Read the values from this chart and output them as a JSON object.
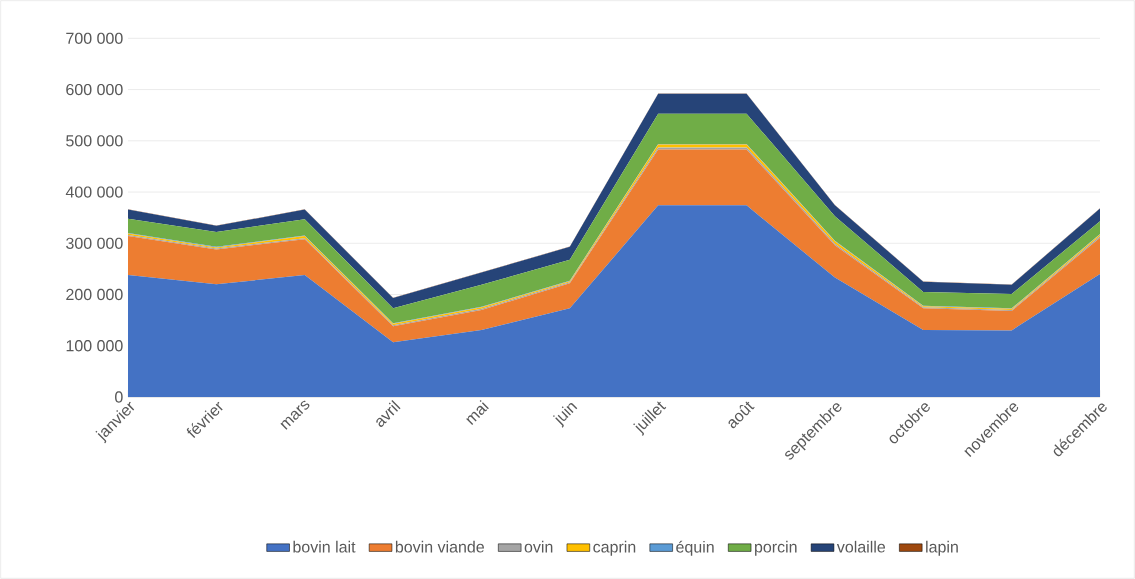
{
  "chart_data": {
    "type": "area",
    "stacked": true,
    "grid": "y",
    "legend": "bottom",
    "categories": [
      "janvier",
      "février",
      "mars",
      "avril",
      "mai",
      "juin",
      "juillet",
      "août",
      "septembre",
      "octobre",
      "novembre",
      "décembre"
    ],
    "ylim": [
      0,
      700000
    ],
    "yticks": [
      0,
      {
        "value": 100000,
        "label": "100 000"
      },
      {
        "value": 200000,
        "label": "200 000"
      },
      {
        "value": 300000,
        "label": "300 000"
      },
      {
        "value": 400000,
        "label": "400 000"
      },
      {
        "value": 500000,
        "label": "500 000"
      },
      {
        "value": 600000,
        "label": "600 000"
      },
      {
        "value": 700000,
        "label": "700 000"
      }
    ],
    "series": [
      {
        "name": "bovin lait",
        "color": "#4472c4",
        "values": [
          238000,
          220000,
          238000,
          107000,
          131000,
          173000,
          374000,
          374000,
          233000,
          131000,
          130000,
          240000
        ]
      },
      {
        "name": "bovin viande",
        "color": "#ed7d31",
        "values": [
          76000,
          68000,
          70000,
          31000,
          39000,
          49000,
          109000,
          109000,
          63000,
          42000,
          38000,
          71000
        ]
      },
      {
        "name": "ovin",
        "color": "#a5a5a5",
        "values": [
          2000,
          2000,
          2000,
          2000,
          2000,
          2000,
          4000,
          4000,
          3000,
          2000,
          2000,
          3000
        ]
      },
      {
        "name": "caprin",
        "color": "#ffc000",
        "values": [
          3000,
          2000,
          4000,
          3000,
          3000,
          2000,
          6000,
          6000,
          5000,
          2000,
          2000,
          3000
        ]
      },
      {
        "name": "équin",
        "color": "#5b9bd5",
        "values": [
          1000,
          1000,
          1000,
          1000,
          1000,
          1000,
          1000,
          1000,
          1000,
          1000,
          1000,
          1000
        ]
      },
      {
        "name": "porcin",
        "color": "#70ad47",
        "values": [
          28000,
          29000,
          32000,
          29000,
          43000,
          41000,
          59000,
          59000,
          48000,
          27000,
          28000,
          25000
        ]
      },
      {
        "name": "volaille",
        "color": "#264478",
        "values": [
          18000,
          12000,
          19000,
          20000,
          24000,
          25000,
          39000,
          39000,
          21000,
          20000,
          18000,
          25000
        ]
      },
      {
        "name": "lapin",
        "color": "#9e480e",
        "values": [
          500,
          500,
          500,
          500,
          500,
          500,
          500,
          500,
          500,
          500,
          500,
          500
        ]
      }
    ]
  }
}
